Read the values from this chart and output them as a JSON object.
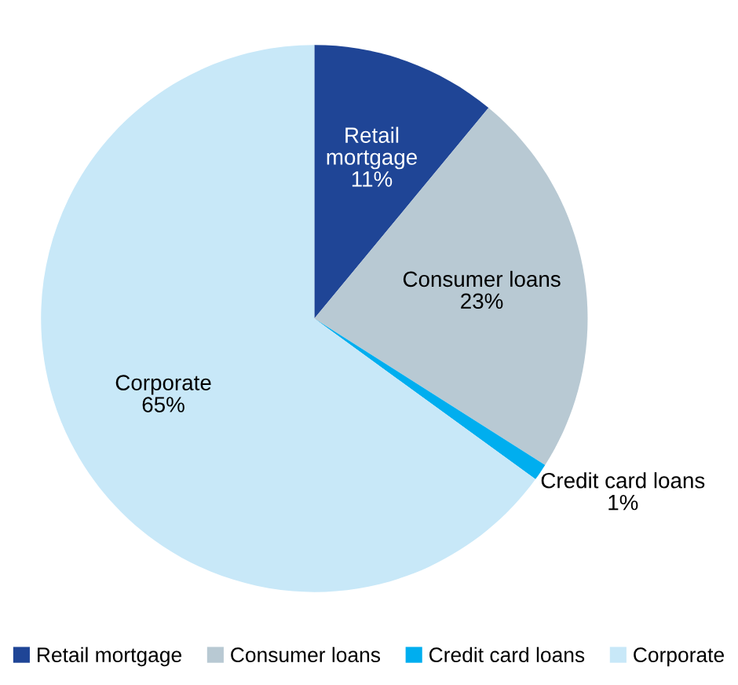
{
  "chart_data": {
    "type": "pie",
    "categories": [
      "Retail mortgage",
      "Consumer loans",
      "Credit card loans",
      "Corporate"
    ],
    "values": [
      11,
      23,
      1,
      65
    ],
    "value_labels": [
      "11%",
      "23%",
      "1%",
      "65%"
    ],
    "colors": [
      "#1f4596",
      "#b8c9d3",
      "#00aeef",
      "#c8e8f8"
    ],
    "legend": "bottom"
  }
}
